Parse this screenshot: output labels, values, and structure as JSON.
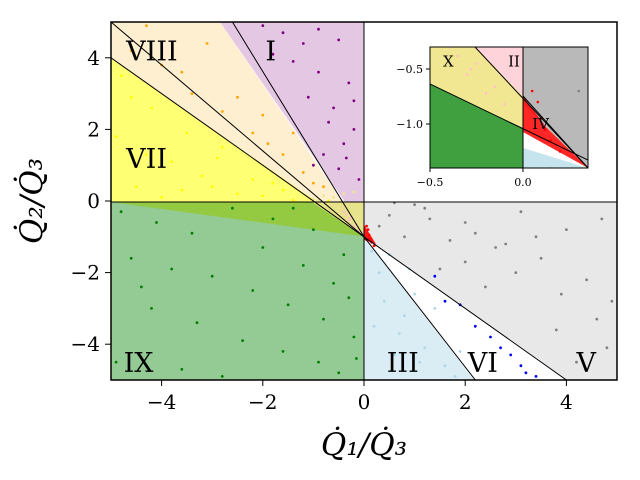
{
  "chart_data": {
    "type": "scatter",
    "title": "",
    "xlabel": "Q̇₁/Q̇₃",
    "ylabel": "Q̇₂/Q̇₃",
    "xlim": [
      -5,
      5
    ],
    "ylim": [
      -5,
      5
    ],
    "xticks": [
      -4,
      -2,
      0,
      2,
      4
    ],
    "yticks": [
      -4,
      -2,
      0,
      2,
      4
    ],
    "xtick_labels": [
      "−4",
      "−2",
      "0",
      "2",
      "4"
    ],
    "ytick_labels": [
      "−4",
      "−2",
      "0",
      "2",
      "4"
    ],
    "zero_lines": true,
    "boundary_lines": [
      {
        "from": [
          -5,
          5.0
        ],
        "to": [
          0,
          -1.0
        ]
      },
      {
        "from": [
          -5,
          4.0
        ],
        "to": [
          0,
          -1.0
        ]
      },
      {
        "from": [
          -2.6,
          5.0
        ],
        "to": [
          0,
          -1.0
        ]
      },
      {
        "from": [
          0,
          -1.0
        ],
        "to": [
          2.2,
          -5.0
        ]
      },
      {
        "from": [
          0,
          -1.0
        ],
        "to": [
          4.0,
          -5.0
        ]
      }
    ],
    "regions": [
      {
        "label": "I",
        "color": "#800080",
        "x": [
          -0.5,
          -0.9,
          -0.2,
          -1.4,
          -0.4,
          -0.7,
          -1.6,
          -0.1,
          -1.1,
          -0.3,
          -0.8,
          -1.8,
          -0.5,
          -1.2,
          -0.2,
          -0.6,
          -1.0,
          -2.0,
          -0.35,
          -0.9
        ],
        "y": [
          4.5,
          3.6,
          2.8,
          3.9,
          1.6,
          2.2,
          4.7,
          0.6,
          2.9,
          3.3,
          1.3,
          4.1,
          0.9,
          4.4,
          2.0,
          2.6,
          1.0,
          4.9,
          1.2,
          4.8
        ]
      },
      {
        "label": "II",
        "color": "#ffc0cb",
        "x": [
          -0.4,
          -0.3,
          -0.2,
          -0.1,
          -0.25,
          -0.35,
          -0.15,
          -0.28
        ],
        "y": [
          -0.3,
          -0.55,
          -0.72,
          -0.82,
          -0.45,
          -0.38,
          -0.66,
          -0.5
        ]
      },
      {
        "label": "III",
        "color": "#add8e6",
        "x": [
          0.3,
          0.8,
          1.2,
          0.5,
          1.6,
          0.2,
          1.0,
          0.6,
          1.4,
          0.9,
          0.4,
          1.8,
          0.7,
          0.15,
          1.1,
          1.9
        ],
        "y": [
          -2.0,
          -3.2,
          -4.1,
          -1.5,
          -4.6,
          -3.5,
          -2.6,
          -4.3,
          -3.0,
          -1.9,
          -2.8,
          -4.9,
          -3.7,
          -1.4,
          -4.5,
          -4.2
        ]
      },
      {
        "label": "IV",
        "color": "#ff0000",
        "x": [
          0.05,
          0.1,
          0.15,
          0.08,
          0.2,
          0.12
        ],
        "y": [
          -0.7,
          -0.95,
          -1.15,
          -0.8,
          -1.25,
          -1.05
        ]
      },
      {
        "label": "V",
        "color": "#808080",
        "x": [
          0.5,
          1.2,
          2.0,
          3.1,
          4.0,
          4.7,
          0.8,
          1.7,
          2.6,
          3.5,
          4.4,
          1.0,
          2.2,
          3.0,
          3.9,
          4.6,
          0.3,
          1.5,
          2.8,
          3.8,
          4.8,
          0.6,
          2.4,
          4.2,
          1.3,
          3.4,
          4.9,
          2.0
        ],
        "y": [
          -0.4,
          -0.2,
          -0.6,
          -0.3,
          -0.8,
          -0.5,
          -1.0,
          -1.1,
          -1.3,
          -1.6,
          -2.2,
          -0.1,
          -0.9,
          -2.0,
          -2.6,
          -3.3,
          -0.7,
          -1.9,
          -1.2,
          -3.6,
          -4.1,
          -0.05,
          -2.4,
          -4.5,
          -0.5,
          -1.0,
          -2.8,
          -1.7
        ]
      },
      {
        "label": "VI",
        "color": "#0000ff",
        "x": [
          1.6,
          2.2,
          2.7,
          3.1,
          1.9,
          2.5,
          3.2,
          2.9,
          1.4,
          3.4
        ],
        "y": [
          -2.8,
          -3.5,
          -4.1,
          -4.6,
          -2.9,
          -3.8,
          -4.8,
          -4.3,
          -2.1,
          -4.9
        ]
      },
      {
        "label": "VII",
        "color": "#ffff00",
        "x": [
          -4.8,
          -4.2,
          -3.5,
          -2.9,
          -2.2,
          -1.6,
          -1.0,
          -4.5,
          -3.8,
          -3.2,
          -2.5,
          -4.9,
          -4.0,
          -3.0,
          -2.0,
          -1.4,
          -4.6,
          -3.6,
          -2.8,
          -0.7,
          -1.8,
          -4.3
        ],
        "y": [
          3.5,
          2.6,
          1.9,
          1.2,
          0.6,
          0.3,
          0.05,
          0.4,
          1.1,
          0.7,
          0.2,
          1.8,
          0.1,
          0.4,
          0.15,
          0.02,
          2.9,
          0.3,
          1.5,
          0.01,
          0.5,
          1.3
        ]
      },
      {
        "label": "VIII",
        "color": "#ffa500",
        "x": [
          -4.6,
          -4.0,
          -3.4,
          -2.8,
          -2.2,
          -1.6,
          -1.2,
          -0.8,
          -3.6,
          -2.5,
          -1.9,
          -1.0,
          -4.3,
          -3.1,
          -2.0,
          -1.4
        ],
        "y": [
          4.2,
          3.8,
          3.0,
          2.5,
          1.9,
          1.3,
          0.8,
          0.4,
          3.6,
          2.9,
          1.6,
          0.5,
          4.9,
          4.4,
          2.4,
          1.9
        ]
      },
      {
        "label": "IX",
        "color": "#008000",
        "x": [
          -4.8,
          -4.1,
          -3.4,
          -2.6,
          -1.8,
          -1.0,
          -0.4,
          -4.6,
          -3.8,
          -3.0,
          -2.2,
          -1.5,
          -0.8,
          -0.2,
          -4.2,
          -3.3,
          -2.4,
          -1.6,
          -0.9,
          -0.5,
          -4.9,
          -3.6,
          -2.0,
          -1.2,
          -0.6,
          -0.15,
          -2.8,
          -4.4,
          -1.4,
          -0.3
        ],
        "y": [
          -0.3,
          -0.6,
          -0.9,
          -0.2,
          -0.5,
          -0.8,
          -1.5,
          -1.6,
          -1.9,
          -2.1,
          -2.5,
          -2.9,
          -3.3,
          -3.8,
          -3.0,
          -3.4,
          -3.9,
          -4.2,
          -4.5,
          -4.8,
          -4.5,
          -4.7,
          -1.3,
          -1.8,
          -2.3,
          -4.4,
          -4.9,
          -2.4,
          -0.2,
          -2.7
        ]
      },
      {
        "label": "X",
        "color": "#f0e68c",
        "x": [
          -1.0,
          -0.8,
          -0.6,
          -0.4,
          -0.2,
          -0.7,
          -0.5,
          -0.3,
          -0.9,
          -0.45
        ],
        "y": [
          0.05,
          0.15,
          0.1,
          0.2,
          0.25,
          -0.05,
          -0.2,
          -0.4,
          0.02,
          0.0
        ]
      }
    ],
    "inset": {
      "xlim": [
        -0.5,
        0.35
      ],
      "ylim": [
        -1.4,
        -0.3
      ],
      "xticks": [
        -0.5,
        0.0
      ],
      "yticks": [
        -0.5,
        -1.0
      ],
      "xtick_labels": [
        "−0.5",
        "0.0"
      ],
      "ytick_labels": [
        "−0.5",
        "−1.0"
      ],
      "region_labels": [
        {
          "label": "X",
          "x": -0.43,
          "y": -0.43
        },
        {
          "label": "II",
          "x": -0.08,
          "y": -0.43
        },
        {
          "label": "IV",
          "x": 0.05,
          "y": -1.0
        }
      ]
    },
    "region_labels": [
      {
        "label": "I",
        "x": -1.95,
        "y": 4.2
      },
      {
        "label": "VII",
        "x": -4.7,
        "y": 1.2
      },
      {
        "label": "VIII",
        "x": -4.7,
        "y": 4.2
      },
      {
        "label": "IX",
        "x": -4.75,
        "y": -4.5
      },
      {
        "label": "III",
        "x": 0.45,
        "y": -4.5
      },
      {
        "label": "VI",
        "x": 2.05,
        "y": -4.5
      },
      {
        "label": "V",
        "x": 4.2,
        "y": -4.5
      }
    ]
  }
}
